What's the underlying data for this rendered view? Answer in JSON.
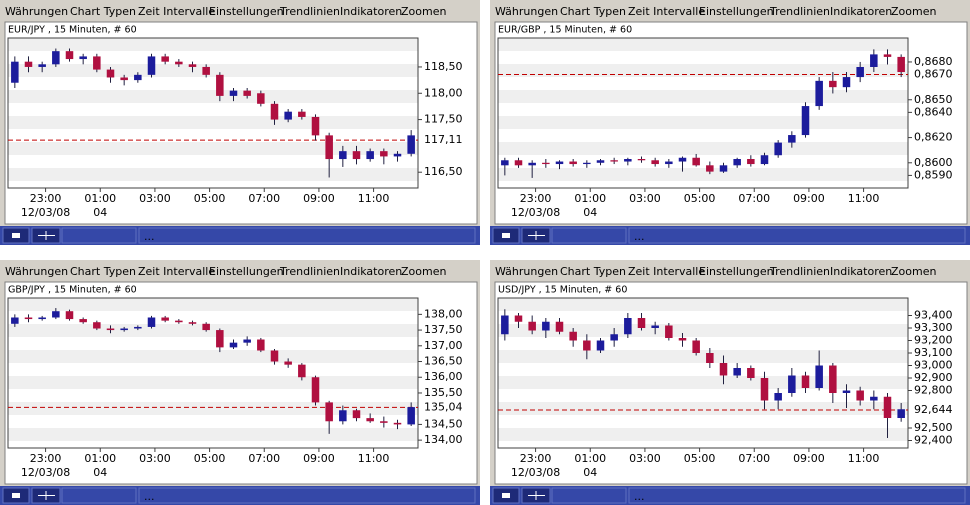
{
  "menu": [
    "Währungen",
    "Chart Typen",
    "Zeit Intervalle",
    "Einstellungen",
    "Trendlinien",
    "Indikatoren",
    "Zoomen"
  ],
  "toolbar_text": "...",
  "chart_data": [
    {
      "type": "candlestick",
      "title": "EUR/JPY , 15 Minuten, # 60",
      "up_color": "#1c1c9c",
      "down_color": "#b01040",
      "open": [
        118.2,
        118.6,
        118.5,
        118.55,
        118.8,
        118.65,
        118.7,
        118.45,
        118.3,
        118.25,
        118.35,
        118.7,
        118.6,
        118.55,
        118.5,
        118.35,
        117.95,
        118.05,
        118.0,
        117.8,
        117.5,
        117.65,
        117.55,
        117.2,
        116.75,
        116.9,
        116.75,
        116.9,
        116.8,
        116.85
      ],
      "high": [
        118.7,
        118.7,
        118.6,
        118.85,
        118.85,
        118.75,
        118.75,
        118.5,
        118.35,
        118.4,
        118.75,
        118.75,
        118.65,
        118.6,
        118.55,
        118.4,
        118.1,
        118.1,
        118.05,
        117.85,
        117.7,
        117.7,
        117.6,
        117.25,
        117.0,
        117.0,
        116.95,
        116.95,
        116.9,
        117.3
      ],
      "low": [
        118.1,
        118.4,
        118.4,
        118.5,
        118.6,
        118.55,
        118.4,
        118.2,
        118.15,
        118.2,
        118.3,
        118.55,
        118.5,
        118.4,
        118.3,
        117.85,
        117.85,
        117.9,
        117.75,
        117.4,
        117.45,
        117.5,
        117.1,
        116.4,
        116.6,
        116.65,
        116.7,
        116.65,
        116.7,
        116.8
      ],
      "close": [
        118.6,
        118.5,
        118.55,
        118.8,
        118.65,
        118.7,
        118.45,
        118.3,
        118.25,
        118.35,
        118.7,
        118.6,
        118.55,
        118.5,
        118.35,
        117.95,
        118.05,
        117.95,
        117.8,
        117.5,
        117.65,
        117.55,
        117.2,
        116.75,
        116.9,
        116.75,
        116.9,
        116.8,
        116.85,
        117.2
      ],
      "xlim": [
        0,
        30
      ],
      "xticks": [
        {
          "value": 2.75,
          "label": "23:00"
        },
        {
          "value": 6.75,
          "label": "01:00"
        },
        {
          "value": 10.75,
          "label": "03:00"
        },
        {
          "value": 14.75,
          "label": "05:00"
        },
        {
          "value": 18.75,
          "label": "07:00"
        },
        {
          "value": 22.75,
          "label": "09:00"
        },
        {
          "value": 26.75,
          "label": "11:00"
        }
      ],
      "date_labels": [
        {
          "value": 2.75,
          "label": "12/03/08"
        },
        {
          "value": 6.75,
          "label": "04"
        }
      ],
      "ylim": [
        116.2,
        119.05
      ],
      "yticks": [
        {
          "value": 116.5,
          "label": "116,50"
        },
        {
          "value": 117.5,
          "label": "117,50"
        },
        {
          "value": 118,
          "label": "118,00"
        },
        {
          "value": 118.5,
          "label": "118,50"
        }
      ],
      "reference_line": {
        "value": 117.11,
        "label": "117,11",
        "color": "#c00000"
      }
    },
    {
      "type": "candlestick",
      "title": "EUR/GBP , 15 Minuten, # 60",
      "up_color": "#1c1c9c",
      "down_color": "#b01040",
      "open": [
        0.8598,
        0.8602,
        0.8598,
        0.86,
        0.8599,
        0.8601,
        0.8599,
        0.86,
        0.8602,
        0.8601,
        0.8603,
        0.8602,
        0.8599,
        0.8601,
        0.8604,
        0.8598,
        0.8593,
        0.8598,
        0.8603,
        0.8599,
        0.8606,
        0.8616,
        0.8622,
        0.8645,
        0.8665,
        0.866,
        0.8668,
        0.8676,
        0.8686,
        0.8684
      ],
      "high": [
        0.8604,
        0.8604,
        0.8602,
        0.8603,
        0.8602,
        0.8603,
        0.8602,
        0.8603,
        0.8604,
        0.8604,
        0.8605,
        0.8604,
        0.8603,
        0.8605,
        0.8607,
        0.8601,
        0.86,
        0.8604,
        0.8606,
        0.8608,
        0.8618,
        0.8625,
        0.8648,
        0.8668,
        0.8672,
        0.8672,
        0.868,
        0.869,
        0.869,
        0.8686
      ],
      "low": [
        0.859,
        0.8596,
        0.8588,
        0.8596,
        0.8595,
        0.8597,
        0.8596,
        0.8598,
        0.8599,
        0.8598,
        0.86,
        0.8597,
        0.8596,
        0.8593,
        0.8597,
        0.8591,
        0.8592,
        0.8596,
        0.8597,
        0.8598,
        0.8604,
        0.8612,
        0.862,
        0.8642,
        0.8655,
        0.8656,
        0.8664,
        0.8672,
        0.8678,
        0.8668
      ],
      "close": [
        0.8602,
        0.8598,
        0.86,
        0.8599,
        0.8601,
        0.8599,
        0.86,
        0.8602,
        0.8601,
        0.8603,
        0.8602,
        0.8599,
        0.8601,
        0.8604,
        0.8598,
        0.8593,
        0.8598,
        0.8603,
        0.8599,
        0.8606,
        0.8616,
        0.8622,
        0.8645,
        0.8665,
        0.866,
        0.8668,
        0.8676,
        0.8686,
        0.8684,
        0.8672
      ],
      "xlim": [
        0,
        30
      ],
      "xticks": [
        {
          "value": 2.75,
          "label": "23:00"
        },
        {
          "value": 6.75,
          "label": "01:00"
        },
        {
          "value": 10.75,
          "label": "03:00"
        },
        {
          "value": 14.75,
          "label": "05:00"
        },
        {
          "value": 18.75,
          "label": "07:00"
        },
        {
          "value": 22.75,
          "label": "09:00"
        },
        {
          "value": 26.75,
          "label": "11:00"
        }
      ],
      "date_labels": [
        {
          "value": 2.75,
          "label": "12/03/08"
        },
        {
          "value": 6.75,
          "label": "04"
        }
      ],
      "ylim": [
        0.858,
        0.8699
      ],
      "yticks": [
        {
          "value": 0.859,
          "label": "0,8590"
        },
        {
          "value": 0.86,
          "label": "0,8600"
        },
        {
          "value": 0.862,
          "label": "0,8620"
        },
        {
          "value": 0.864,
          "label": "0,8640"
        },
        {
          "value": 0.865,
          "label": "0,8650"
        },
        {
          "value": 0.868,
          "label": "0,8680"
        }
      ],
      "reference_line": {
        "value": 0.867,
        "label": "0,8670",
        "color": "#c00000"
      }
    },
    {
      "type": "candlestick",
      "title": "GBP/JPY , 15 Minuten, # 60",
      "up_color": "#1c1c9c",
      "down_color": "#b01040",
      "open": [
        137.7,
        137.9,
        137.85,
        137.9,
        138.1,
        137.85,
        137.75,
        137.55,
        137.5,
        137.55,
        137.6,
        137.9,
        137.8,
        137.75,
        137.7,
        137.5,
        136.95,
        137.1,
        137.2,
        136.85,
        136.5,
        136.4,
        136.0,
        135.2,
        134.6,
        134.95,
        134.7,
        134.6,
        134.55,
        134.5
      ],
      "high": [
        138.0,
        138.0,
        137.95,
        138.2,
        138.15,
        137.9,
        137.8,
        137.65,
        137.6,
        137.65,
        137.95,
        137.95,
        137.85,
        137.8,
        137.75,
        137.55,
        137.2,
        137.3,
        137.25,
        136.9,
        136.6,
        136.45,
        136.05,
        135.25,
        135.1,
        135.0,
        134.85,
        134.75,
        134.65,
        135.2
      ],
      "low": [
        137.6,
        137.75,
        137.8,
        137.85,
        137.8,
        137.7,
        137.5,
        137.4,
        137.45,
        137.5,
        137.55,
        137.75,
        137.7,
        137.65,
        137.45,
        136.8,
        136.9,
        137.0,
        136.8,
        136.4,
        136.3,
        135.9,
        135.1,
        134.2,
        134.5,
        134.6,
        134.55,
        134.4,
        134.35,
        134.45
      ],
      "close": [
        137.9,
        137.85,
        137.9,
        138.1,
        137.85,
        137.75,
        137.55,
        137.5,
        137.55,
        137.6,
        137.9,
        137.8,
        137.75,
        137.7,
        137.5,
        136.95,
        137.1,
        137.2,
        136.85,
        136.5,
        136.4,
        136.0,
        135.2,
        134.6,
        134.95,
        134.7,
        134.6,
        134.55,
        134.5,
        135.05
      ],
      "xlim": [
        0,
        30
      ],
      "xticks": [
        {
          "value": 2.75,
          "label": "23:00"
        },
        {
          "value": 6.75,
          "label": "01:00"
        },
        {
          "value": 10.75,
          "label": "03:00"
        },
        {
          "value": 14.75,
          "label": "05:00"
        },
        {
          "value": 18.75,
          "label": "07:00"
        },
        {
          "value": 22.75,
          "label": "09:00"
        },
        {
          "value": 26.75,
          "label": "11:00"
        }
      ],
      "date_labels": [
        {
          "value": 2.75,
          "label": "12/03/08"
        },
        {
          "value": 6.75,
          "label": "04"
        }
      ],
      "ylim": [
        133.75,
        138.52
      ],
      "yticks": [
        {
          "value": 134,
          "label": "134,00"
        },
        {
          "value": 134.5,
          "label": "134,50"
        },
        {
          "value": 135.5,
          "label": "135,50"
        },
        {
          "value": 136,
          "label": "136,00"
        },
        {
          "value": 136.5,
          "label": "136,50"
        },
        {
          "value": 137,
          "label": "137,00"
        },
        {
          "value": 137.5,
          "label": "137,50"
        },
        {
          "value": 138,
          "label": "138,00"
        }
      ],
      "reference_line": {
        "value": 135.04,
        "label": "135,04",
        "color": "#c00000"
      }
    },
    {
      "type": "candlestick",
      "title": "USD/JPY , 15 Minuten, # 60",
      "up_color": "#1c1c9c",
      "down_color": "#b01040",
      "open": [
        93.25,
        93.4,
        93.35,
        93.28,
        93.35,
        93.27,
        93.2,
        93.12,
        93.2,
        93.25,
        93.38,
        93.3,
        93.32,
        93.22,
        93.2,
        93.1,
        93.02,
        92.92,
        92.98,
        92.9,
        92.72,
        92.78,
        92.92,
        92.82,
        93.0,
        92.78,
        92.8,
        92.72,
        92.75,
        92.58
      ],
      "high": [
        93.45,
        93.42,
        93.4,
        93.38,
        93.38,
        93.3,
        93.25,
        93.22,
        93.3,
        93.42,
        93.42,
        93.35,
        93.34,
        93.26,
        93.22,
        93.14,
        93.08,
        93.02,
        93.0,
        92.95,
        92.82,
        92.98,
        92.95,
        93.12,
        93.02,
        92.85,
        92.83,
        92.8,
        92.78,
        92.7
      ],
      "low": [
        93.2,
        93.3,
        93.25,
        93.22,
        93.25,
        93.15,
        93.05,
        93.1,
        93.15,
        93.22,
        93.28,
        93.25,
        93.2,
        93.15,
        93.08,
        92.98,
        92.85,
        92.9,
        92.88,
        92.65,
        92.65,
        92.75,
        92.78,
        92.8,
        92.7,
        92.66,
        92.68,
        92.65,
        92.42,
        92.55
      ],
      "close": [
        93.4,
        93.35,
        93.28,
        93.35,
        93.27,
        93.2,
        93.12,
        93.2,
        93.25,
        93.38,
        93.3,
        93.32,
        93.22,
        93.2,
        93.1,
        93.02,
        92.92,
        92.98,
        92.9,
        92.72,
        92.78,
        92.92,
        92.82,
        93.0,
        92.78,
        92.8,
        92.72,
        92.75,
        92.58,
        92.65
      ],
      "xlim": [
        0,
        30
      ],
      "xticks": [
        {
          "value": 2.75,
          "label": "23:00"
        },
        {
          "value": 6.75,
          "label": "01:00"
        },
        {
          "value": 10.75,
          "label": "03:00"
        },
        {
          "value": 14.75,
          "label": "05:00"
        },
        {
          "value": 18.75,
          "label": "07:00"
        },
        {
          "value": 22.75,
          "label": "09:00"
        },
        {
          "value": 26.75,
          "label": "11:00"
        }
      ],
      "date_labels": [
        {
          "value": 2.75,
          "label": "12/03/08"
        },
        {
          "value": 6.75,
          "label": "04"
        }
      ],
      "ylim": [
        92.34,
        93.54
      ],
      "yticks": [
        {
          "value": 92.4,
          "label": "92,400"
        },
        {
          "value": 92.5,
          "label": "92,500"
        },
        {
          "value": 92.8,
          "label": "92,800"
        },
        {
          "value": 92.9,
          "label": "92,900"
        },
        {
          "value": 93,
          "label": "93,000"
        },
        {
          "value": 93.1,
          "label": "93,100"
        },
        {
          "value": 93.2,
          "label": "93,200"
        },
        {
          "value": 93.3,
          "label": "93,300"
        },
        {
          "value": 93.4,
          "label": "93,400"
        }
      ],
      "reference_line": {
        "value": 92.644,
        "label": "92,644",
        "color": "#c00000"
      }
    }
  ]
}
